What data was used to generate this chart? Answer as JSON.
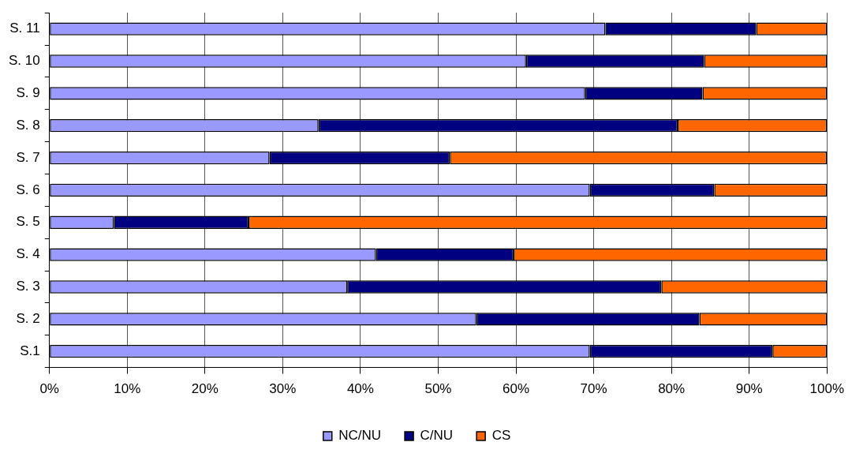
{
  "chart_data": {
    "type": "bar",
    "orientation": "horizontal",
    "stacked": true,
    "categories": [
      "S. 11",
      "S. 10",
      "S. 9",
      "S. 8",
      "S. 7",
      "S. 6",
      "S. 5",
      "S. 4",
      "S. 3",
      "S. 2",
      "S.1"
    ],
    "series": [
      {
        "name": "NC/NU",
        "color": "#9999ff",
        "values": [
          71.5,
          61.3,
          68.9,
          34.6,
          28.3,
          69.5,
          8.3,
          42.0,
          38.3,
          54.9,
          69.5
        ]
      },
      {
        "name": "C/NU",
        "color": "#000080",
        "values": [
          19.4,
          22.9,
          15.1,
          46.2,
          23.2,
          16.0,
          17.3,
          17.7,
          40.4,
          28.7,
          23.5
        ]
      },
      {
        "name": "CS",
        "color": "#ff6600",
        "values": [
          9.1,
          15.8,
          16.0,
          19.2,
          48.5,
          14.5,
          74.4,
          40.3,
          21.3,
          16.4,
          7.0
        ]
      }
    ],
    "xlim": [
      0,
      100
    ],
    "xticks": [
      {
        "value": 0,
        "label": "0%"
      },
      {
        "value": 10,
        "label": "10%"
      },
      {
        "value": 20,
        "label": "20%"
      },
      {
        "value": 30,
        "label": "30%"
      },
      {
        "value": 40,
        "label": "40%"
      },
      {
        "value": 50,
        "label": "50%"
      },
      {
        "value": 60,
        "label": "60%"
      },
      {
        "value": 70,
        "label": "70%"
      },
      {
        "value": 80,
        "label": "80%"
      },
      {
        "value": 90,
        "label": "90%"
      },
      {
        "value": 100,
        "label": "100%"
      }
    ],
    "grid": "x",
    "legend": "bottom"
  }
}
